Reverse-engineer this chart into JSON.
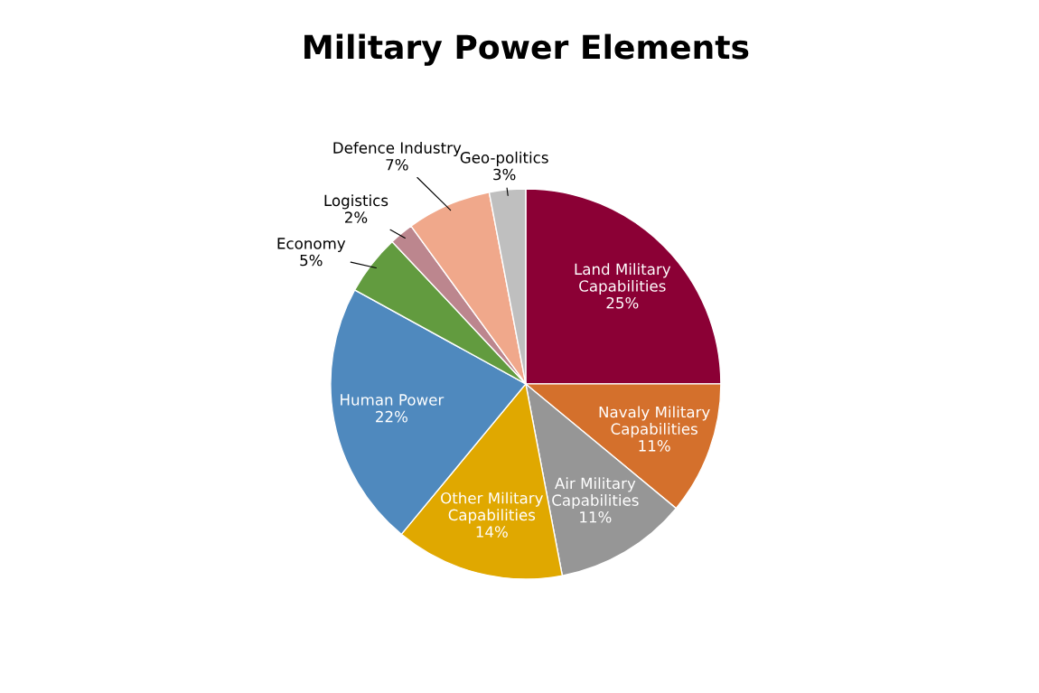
{
  "chart_data": {
    "type": "pie",
    "title": "Military Power Elements",
    "categories": [
      "Land Military\nCapabilities",
      "Navaly Military\nCapabilities",
      "Air Military\nCapabilities",
      "Other Military\nCapabilities",
      "Human Power",
      "Economy",
      "Logistics",
      "Defence Industry",
      "Geo-politics"
    ],
    "values": [
      25,
      11,
      11,
      14,
      22,
      5,
      2,
      7,
      3
    ],
    "colors": [
      "#8b0035",
      "#d4702c",
      "#969696",
      "#e0a800",
      "#4f89be",
      "#629b3f",
      "#bc868e",
      "#f0a88b",
      "#bfbfbf"
    ],
    "value_labels": [
      "25%",
      "11%",
      "11%",
      "14%",
      "22%",
      "5%",
      "2%",
      "7%",
      "3%"
    ],
    "legend": false
  }
}
